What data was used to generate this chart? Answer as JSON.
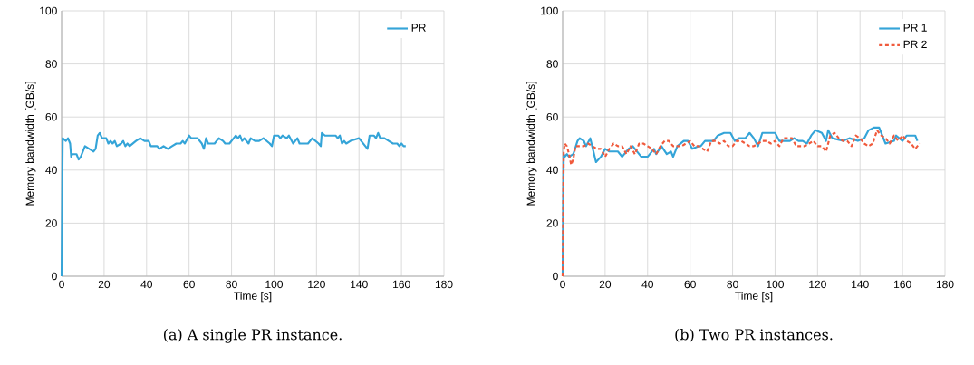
{
  "chart_data": [
    {
      "type": "line",
      "xlabel": "Time [s]",
      "ylabel": "Memory bandwidth [GB/s]",
      "xlim": [
        0,
        180
      ],
      "ylim": [
        0,
        100
      ],
      "xticks": [
        0,
        20,
        40,
        60,
        80,
        100,
        120,
        140,
        160,
        180
      ],
      "yticks": [
        0,
        20,
        40,
        60,
        80,
        100
      ],
      "grid": true,
      "legend": "top right",
      "annotations": [
        "(a) A single PR instance."
      ],
      "series": [
        {
          "name": "PR",
          "color": "#34a4d8",
          "line_style": "solid",
          "x": [
            0,
            0.5,
            2,
            3,
            4,
            4.5,
            5,
            7,
            8,
            9,
            11,
            13,
            15,
            16,
            17,
            18,
            19,
            21,
            22,
            23,
            24,
            25,
            26,
            28,
            29,
            30,
            31,
            32,
            35,
            37,
            39,
            41,
            42,
            45,
            46,
            48,
            50,
            52,
            54,
            56,
            57,
            58,
            60,
            61,
            64,
            66,
            67,
            68,
            69,
            72,
            74,
            76,
            77,
            79,
            81,
            82,
            83,
            84,
            85,
            86,
            88,
            89,
            91,
            93,
            95,
            98,
            99,
            100,
            102,
            103,
            104,
            106,
            107,
            109,
            111,
            112,
            116,
            118,
            121,
            122,
            122.5,
            124,
            129,
            130,
            131,
            132,
            133,
            134,
            136,
            140,
            142,
            144,
            145,
            147,
            148,
            149,
            150,
            152,
            154,
            156,
            158,
            159,
            160,
            161,
            162
          ],
          "values": [
            0,
            52,
            51,
            52,
            50,
            45,
            46,
            46,
            44,
            45,
            49,
            48,
            47,
            48,
            53,
            54,
            52,
            52,
            50,
            51,
            50,
            51,
            49,
            50,
            51,
            49,
            50,
            49,
            51,
            52,
            51,
            51,
            49,
            49,
            48,
            49,
            48,
            49,
            50,
            50,
            51,
            50,
            53,
            52,
            52,
            50,
            48,
            52,
            50,
            50,
            52,
            51,
            50,
            50,
            52,
            53,
            52,
            53,
            51,
            52,
            50,
            52,
            51,
            51,
            52,
            50,
            49,
            53,
            53,
            52,
            53,
            52,
            53,
            50,
            52,
            50,
            50,
            52,
            50,
            49,
            54,
            53,
            53,
            52,
            53,
            50,
            51,
            50,
            51,
            52,
            50,
            48,
            53,
            53,
            52,
            54,
            52,
            52,
            51,
            50,
            50,
            49,
            50,
            49,
            49
          ]
        }
      ]
    },
    {
      "type": "line",
      "xlabel": "Time [s]",
      "ylabel": "Memory bandwidth [GB/s]",
      "xlim": [
        0,
        180
      ],
      "ylim": [
        0,
        100
      ],
      "xticks": [
        0,
        20,
        40,
        60,
        80,
        100,
        120,
        140,
        160,
        180
      ],
      "yticks": [
        0,
        20,
        40,
        60,
        80,
        100
      ],
      "grid": true,
      "legend": "top right",
      "annotations": [
        "(b) Two PR instances."
      ],
      "series": [
        {
          "name": "PR 1",
          "color": "#34a4d8",
          "line_style": "solid",
          "x": [
            0,
            0.5,
            1,
            2,
            3,
            5,
            7,
            8,
            10,
            11,
            13,
            15.7,
            18,
            20,
            22,
            26,
            28,
            31,
            33,
            35,
            37,
            40,
            43,
            44,
            46.5,
            49,
            51,
            52,
            54,
            57,
            59,
            61,
            64,
            65,
            67,
            69,
            71,
            73,
            76,
            78,
            79,
            81,
            83,
            86,
            88,
            90,
            92,
            94,
            96,
            98,
            100,
            102,
            107,
            109,
            111,
            113,
            115,
            117,
            119,
            122,
            124,
            125,
            127,
            132,
            135,
            139,
            142,
            144,
            146.5,
            149,
            152,
            156,
            157,
            160,
            162,
            166,
            167
          ],
          "values": [
            0,
            46,
            45,
            46,
            45,
            46,
            51,
            52,
            51,
            49,
            52,
            43,
            45,
            48,
            47,
            47,
            45,
            48,
            49,
            47,
            45,
            45,
            48,
            46,
            49,
            46,
            47,
            45,
            49,
            51,
            51,
            48,
            49,
            49,
            51,
            51,
            51,
            53,
            54,
            54,
            54,
            51,
            52,
            52,
            54,
            52,
            49,
            54,
            54,
            54,
            54,
            51,
            51,
            52,
            51,
            51,
            50,
            53,
            55,
            54,
            51,
            55,
            52,
            51,
            52,
            51,
            52,
            55,
            56,
            56,
            50,
            51,
            53,
            51,
            53,
            53,
            51
          ]
        },
        {
          "name": "PR 2",
          "color": "#f05a3c",
          "line_style": "dashed",
          "x": [
            0,
            0.5,
            1,
            2,
            3,
            4,
            5,
            6,
            8,
            10,
            12,
            14,
            16,
            18,
            20,
            22,
            24,
            26,
            28,
            30,
            32,
            34,
            36,
            38,
            40,
            42,
            44,
            46,
            48,
            50,
            52,
            54,
            56,
            58,
            60,
            62,
            64,
            66,
            68,
            70,
            72,
            74,
            76,
            78,
            80,
            82,
            84,
            86,
            88,
            90,
            92,
            94,
            96,
            98,
            100,
            102,
            104,
            106,
            108,
            110,
            112,
            114,
            116,
            118,
            120,
            122,
            124,
            126,
            128,
            130,
            132,
            134,
            136,
            138,
            140,
            142,
            144,
            146,
            148,
            150,
            152,
            154,
            156,
            158,
            160,
            162,
            164,
            166,
            168
          ],
          "values": [
            0,
            47,
            50,
            49,
            46,
            42,
            44,
            49,
            49,
            49,
            50,
            49,
            48,
            48,
            45,
            48,
            50,
            49,
            49,
            46,
            49,
            46,
            50,
            50,
            49,
            48,
            46,
            49,
            51,
            51,
            49,
            49,
            49,
            50,
            51,
            49,
            49,
            48,
            47,
            51,
            51,
            50,
            51,
            49,
            49,
            51,
            51,
            50,
            49,
            49,
            50,
            51,
            51,
            50,
            51,
            49,
            52,
            52,
            52,
            49,
            49,
            49,
            50,
            51,
            49,
            49,
            47,
            53,
            54,
            52,
            51,
            51,
            49,
            53,
            52,
            50,
            49,
            50,
            55,
            53,
            52,
            50,
            53,
            51,
            53,
            51,
            50,
            48,
            50
          ]
        }
      ]
    }
  ]
}
